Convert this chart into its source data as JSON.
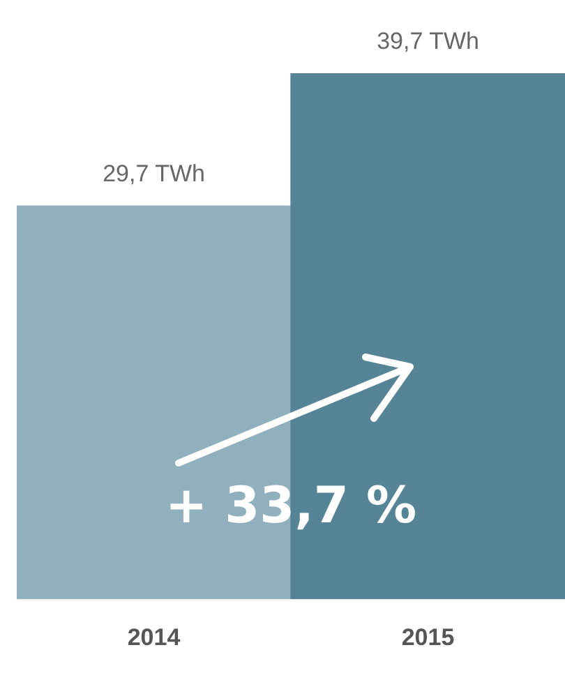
{
  "chart_data": {
    "type": "bar",
    "categories": [
      "2014",
      "2015"
    ],
    "values": [
      29.7,
      39.7
    ],
    "colors": [
      "#8fb0bc",
      "#558497"
    ],
    "value_labels": [
      "29,7 TWh",
      "39,7 TWh"
    ],
    "annotations": [
      "+ 33,7 %"
    ],
    "grid": false,
    "legend": false
  }
}
